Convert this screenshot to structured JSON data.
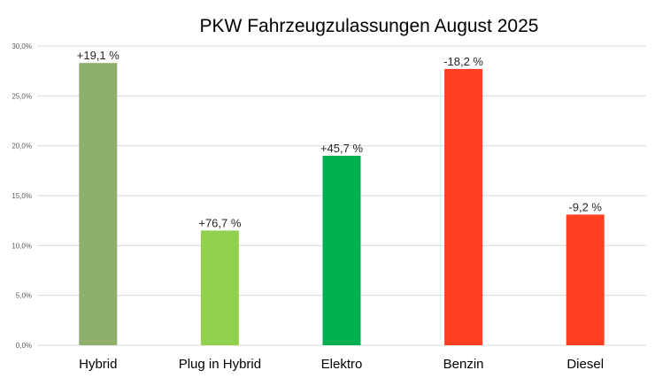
{
  "chart_data": {
    "type": "bar",
    "title": "PKW Fahrzeugzulassungen August 2025",
    "xlabel": "",
    "ylabel": "",
    "ylim": [
      0,
      30
    ],
    "yticks": [
      "0,0%",
      "5,0%",
      "10,0%",
      "15,0%",
      "20,0%",
      "25,0%",
      "30,0%"
    ],
    "grid": true,
    "legend": "none",
    "categories": [
      "Hybrid",
      "Plug in Hybrid",
      "Elektro",
      "Benzin",
      "Diesel"
    ],
    "values": [
      28.3,
      11.5,
      19.0,
      27.7,
      13.1
    ],
    "data_labels": [
      "+19,1 %",
      "+76,7 %",
      "+45,7 %",
      "-18,2 %",
      "-9,2 %"
    ],
    "colors": [
      "#8faf6d",
      "#92d050",
      "#00b050",
      "#ff3f1f",
      "#ff3f1f"
    ]
  }
}
